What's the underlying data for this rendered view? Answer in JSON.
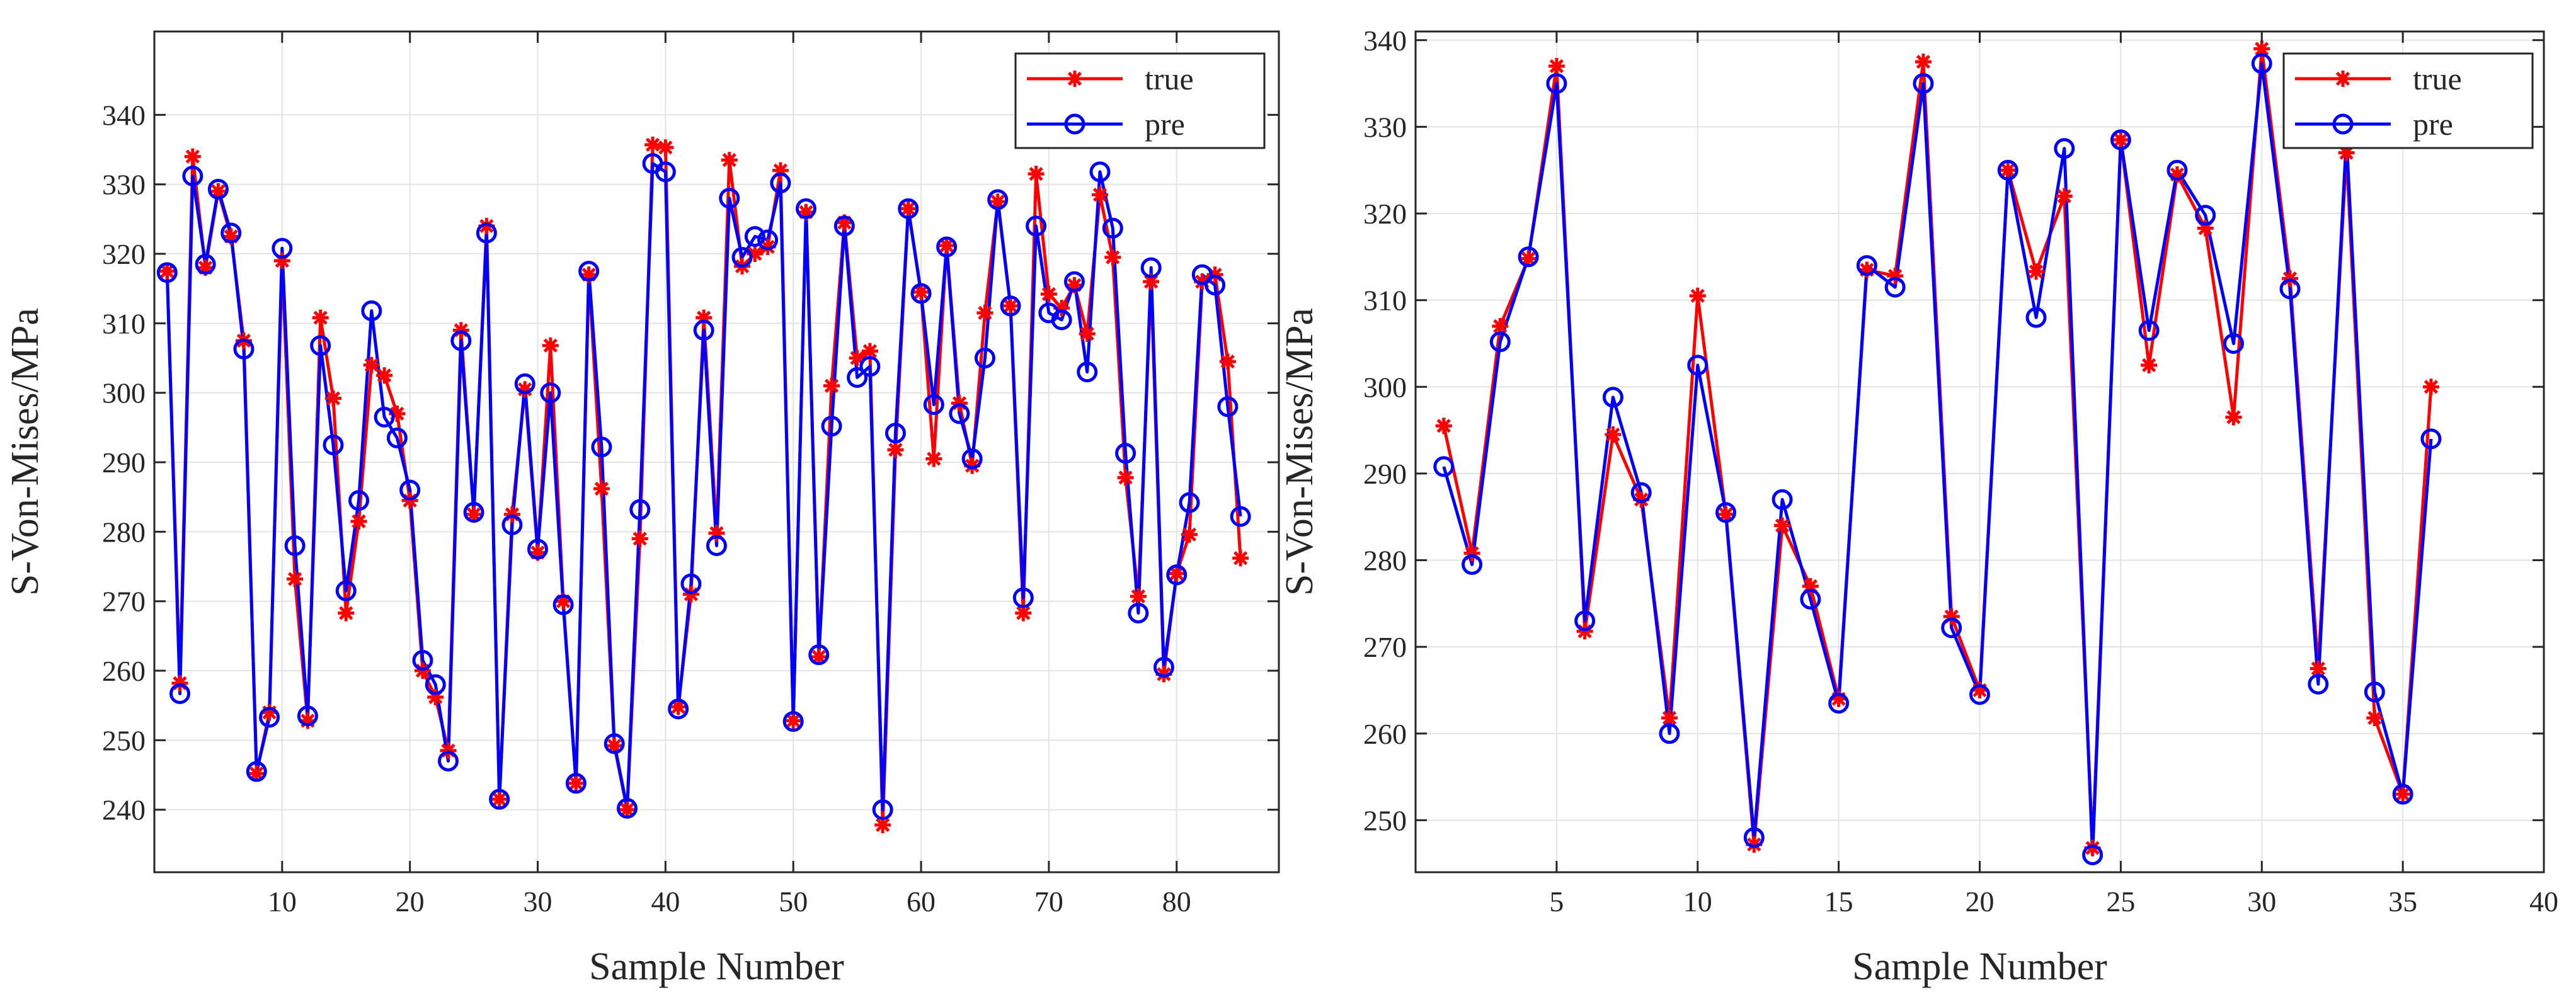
{
  "chart_data": [
    {
      "type": "line",
      "xlabel": "Sample Number",
      "ylabel": "S-Von-Mises/MPa",
      "xlim": [
        0,
        88
      ],
      "ylim": [
        231,
        352
      ],
      "xticks": [
        10,
        20,
        30,
        40,
        50,
        60,
        70,
        80
      ],
      "yticks": [
        240,
        250,
        260,
        270,
        280,
        290,
        300,
        310,
        320,
        330,
        340
      ],
      "grid": true,
      "legend_position": "top-right",
      "series": [
        {
          "name": "true",
          "color": "#ff0000",
          "marker": "asterisk",
          "x": [
            1,
            2,
            3,
            4,
            5,
            6,
            7,
            8,
            9,
            10,
            11,
            12,
            13,
            14,
            15,
            16,
            17,
            18,
            19,
            20,
            21,
            22,
            23,
            24,
            25,
            26,
            27,
            28,
            29,
            30,
            31,
            32,
            33,
            34,
            35,
            36,
            37,
            38,
            39,
            40,
            41,
            42,
            43,
            44,
            45,
            46,
            47,
            48,
            49,
            50,
            51,
            52,
            53,
            54,
            55,
            56,
            57,
            58,
            59,
            60,
            61,
            62,
            63,
            64,
            65,
            66,
            67,
            68,
            69,
            70,
            71,
            72,
            73,
            74,
            75,
            76,
            77,
            78,
            79,
            80,
            81,
            82,
            83,
            84,
            85
          ],
          "values": [
            317.5,
            258.2,
            334.0,
            318.0,
            329.0,
            322.5,
            307.5,
            245.2,
            254.0,
            319.0,
            273.2,
            252.8,
            310.8,
            299.2,
            268.3,
            281.5,
            304.0,
            302.5,
            297.0,
            284.5,
            260.0,
            256.2,
            248.5,
            309.0,
            282.5,
            324.0,
            241.5,
            282.5,
            300.5,
            277.0,
            306.8,
            270.0,
            243.8,
            317.0,
            286.2,
            249.2,
            240.0,
            279.0,
            335.7,
            335.3,
            254.8,
            271.0,
            310.8,
            279.8,
            333.5,
            318.2,
            320.0,
            321.0,
            332.0,
            252.8,
            326.0,
            262.0,
            301.0,
            324.5,
            305.0,
            306.0,
            237.8,
            291.8,
            326.5,
            314.5,
            290.5,
            321.2,
            298.5,
            289.5,
            311.5,
            327.5,
            312.5,
            268.3,
            331.5,
            314.2,
            312.2,
            315.5,
            308.5,
            328.5,
            319.5,
            287.8,
            270.7,
            316.0,
            259.5,
            274.0,
            279.6,
            316.0,
            317.0,
            304.5,
            276.2
          ]
        },
        {
          "name": "pre",
          "color": "#0000ff",
          "marker": "circle",
          "x": [
            1,
            2,
            3,
            4,
            5,
            6,
            7,
            8,
            9,
            10,
            11,
            12,
            13,
            14,
            15,
            16,
            17,
            18,
            19,
            20,
            21,
            22,
            23,
            24,
            25,
            26,
            27,
            28,
            29,
            30,
            31,
            32,
            33,
            34,
            35,
            36,
            37,
            38,
            39,
            40,
            41,
            42,
            43,
            44,
            45,
            46,
            47,
            48,
            49,
            50,
            51,
            52,
            53,
            54,
            55,
            56,
            57,
            58,
            59,
            60,
            61,
            62,
            63,
            64,
            65,
            66,
            67,
            68,
            69,
            70,
            71,
            72,
            73,
            74,
            75,
            76,
            77,
            78,
            79,
            80,
            81,
            82,
            83,
            84,
            85
          ],
          "values": [
            317.3,
            256.7,
            331.2,
            318.5,
            329.3,
            323.0,
            306.3,
            245.5,
            253.3,
            320.8,
            278.0,
            253.5,
            306.8,
            292.5,
            271.5,
            284.5,
            311.8,
            296.5,
            293.5,
            286.0,
            261.5,
            258.0,
            247.0,
            307.5,
            282.8,
            323.0,
            241.5,
            281.0,
            301.3,
            277.5,
            300.0,
            269.5,
            243.8,
            317.5,
            292.2,
            249.5,
            240.2,
            283.2,
            333.0,
            331.8,
            254.5,
            272.5,
            309.0,
            278.0,
            328.0,
            319.5,
            322.5,
            322.0,
            330.2,
            252.7,
            326.5,
            262.3,
            295.2,
            324.0,
            302.2,
            303.8,
            240.0,
            294.2,
            326.5,
            314.3,
            298.3,
            321.0,
            297.0,
            290.5,
            305.0,
            327.8,
            312.5,
            270.5,
            324.0,
            311.5,
            310.5,
            316.0,
            303.0,
            331.8,
            323.7,
            291.3,
            268.3,
            318.0,
            260.5,
            273.8,
            284.2,
            317.0,
            315.5,
            298.0,
            282.2
          ]
        }
      ]
    },
    {
      "type": "line",
      "xlabel": "Sample Number",
      "ylabel": "S-Von-Mises/MPa",
      "xlim": [
        0,
        40
      ],
      "ylim": [
        244,
        341
      ],
      "xticks": [
        5,
        10,
        15,
        20,
        25,
        30,
        35,
        40
      ],
      "yticks": [
        250,
        260,
        270,
        280,
        290,
        300,
        310,
        320,
        330,
        340
      ],
      "grid": true,
      "legend_position": "top-right",
      "series": [
        {
          "name": "true",
          "color": "#ff0000",
          "marker": "asterisk",
          "x": [
            1,
            2,
            3,
            4,
            5,
            6,
            7,
            8,
            9,
            10,
            11,
            12,
            13,
            14,
            15,
            16,
            17,
            18,
            19,
            20,
            21,
            22,
            23,
            24,
            25,
            26,
            27,
            28,
            29,
            30,
            31,
            32,
            33,
            34,
            35,
            36
          ],
          "values": [
            295.5,
            280.8,
            307.0,
            314.8,
            337.0,
            271.8,
            294.5,
            287.0,
            261.8,
            310.5,
            285.3,
            247.2,
            284.0,
            277.0,
            264.0,
            313.5,
            312.8,
            337.5,
            273.5,
            265.0,
            325.0,
            313.3,
            322.0,
            246.8,
            328.5,
            302.5,
            324.5,
            318.3,
            296.5,
            339.0,
            312.5,
            267.5,
            327.0,
            261.8,
            253.0,
            300.0
          ]
        },
        {
          "name": "pre",
          "color": "#0000ff",
          "marker": "circle",
          "x": [
            1,
            2,
            3,
            4,
            5,
            6,
            7,
            8,
            9,
            10,
            11,
            12,
            13,
            14,
            15,
            16,
            17,
            18,
            19,
            20,
            21,
            22,
            23,
            24,
            25,
            26,
            27,
            28,
            29,
            30,
            31,
            32,
            33,
            34,
            35,
            36
          ],
          "values": [
            290.8,
            279.5,
            305.2,
            315.0,
            335.0,
            273.0,
            298.8,
            287.8,
            260.0,
            302.5,
            285.5,
            248.0,
            287.0,
            275.5,
            263.5,
            314.0,
            311.5,
            335.0,
            272.2,
            264.5,
            325.0,
            308.0,
            327.5,
            246.0,
            328.5,
            306.5,
            325.0,
            319.8,
            305.0,
            337.3,
            311.3,
            265.7,
            328.8,
            264.8,
            253.0,
            294.0
          ]
        }
      ]
    }
  ]
}
